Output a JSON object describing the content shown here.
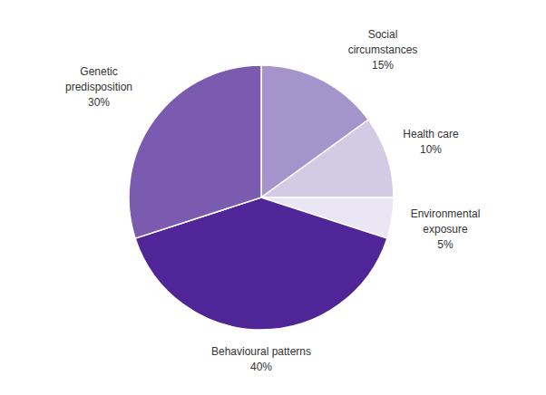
{
  "chart_data": {
    "type": "pie",
    "categories": [
      "Social circumstances",
      "Health care",
      "Environmental exposure",
      "Behavioural patterns",
      "Genetic predisposition"
    ],
    "values": [
      15,
      10,
      5,
      40,
      30
    ],
    "value_labels": [
      "15%",
      "10%",
      "5%",
      "40%",
      "30%"
    ],
    "colors": [
      "#a593cc",
      "#d3cae6",
      "#ebe6f3",
      "#4f2597",
      "#7a5bb0"
    ],
    "data_labels": true
  }
}
